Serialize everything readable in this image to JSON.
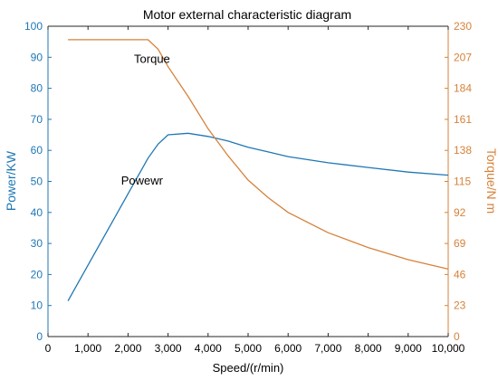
{
  "chart_data": {
    "type": "line",
    "title": "Motor external characteristic diagram",
    "xlabel": "Speed/(r/min)",
    "ylabel_left": "Power/KW",
    "ylabel_right": "Torque/N m",
    "xlim": [
      0,
      10000
    ],
    "ylim_left": [
      0,
      100
    ],
    "ylim_right": [
      0,
      230
    ],
    "x_ticks": [
      0,
      1000,
      2000,
      3000,
      4000,
      5000,
      6000,
      7000,
      8000,
      9000,
      10000
    ],
    "x_tick_labels": [
      "0",
      "1,000",
      "2,000",
      "3,000",
      "4,000",
      "5,000",
      "6,000",
      "7,000",
      "8,000",
      "9,000",
      "10,000"
    ],
    "left_ticks": [
      0,
      10,
      20,
      30,
      40,
      50,
      60,
      70,
      80,
      90,
      100
    ],
    "left_tick_labels": [
      "0",
      "10",
      "20",
      "30",
      "40",
      "50",
      "60",
      "70",
      "80",
      "90",
      "100"
    ],
    "right_ticks": [
      0,
      23,
      46,
      69,
      92,
      115,
      138,
      161,
      184,
      207,
      230
    ],
    "right_tick_labels": [
      "0",
      "23",
      "46",
      "69",
      "92",
      "115",
      "138",
      "161",
      "184",
      "207",
      "230"
    ],
    "grid": false,
    "series": [
      {
        "name": "Powewr",
        "axis": "left",
        "color": "#1f77b4",
        "x": [
          500,
          1000,
          1500,
          2000,
          2500,
          2750,
          3000,
          3500,
          4000,
          4500,
          5000,
          5500,
          6000,
          7000,
          8000,
          9000,
          10000
        ],
        "values": [
          11.5,
          23,
          34.5,
          46,
          57.5,
          62,
          65,
          65.5,
          64.5,
          63,
          61,
          59.5,
          58,
          56,
          54.5,
          53,
          52
        ]
      },
      {
        "name": "Torque",
        "axis": "right",
        "color": "#d6823a",
        "x": [
          500,
          1000,
          1500,
          2000,
          2500,
          2750,
          3000,
          3500,
          4000,
          4500,
          5000,
          5500,
          6000,
          7000,
          8000,
          9000,
          10000
        ],
        "values": [
          220,
          220,
          220,
          220,
          220,
          213,
          200,
          178,
          154,
          134,
          116,
          103,
          92,
          77,
          66,
          57,
          50
        ]
      }
    ],
    "annotations": [
      {
        "text": "Torque",
        "x": 2600,
        "y_right": 203
      },
      {
        "text": "Powewr",
        "x": 2350,
        "y_left": 49
      }
    ]
  }
}
